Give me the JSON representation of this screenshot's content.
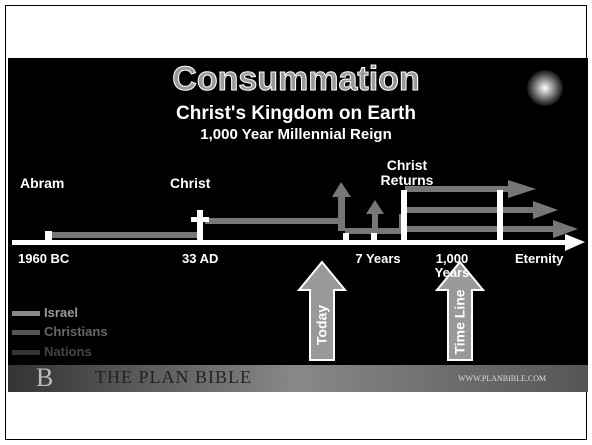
{
  "slide": {
    "title": "Consummation",
    "subtitle": "Christ's Kingdom on Earth",
    "subtitle2": "1,000 Year Millennial Reign",
    "labels_above": [
      "Abram",
      "Christ",
      "Christ Returns"
    ],
    "labels_below": [
      "1960 BC",
      "33 AD",
      "7 Years",
      "1,000 Years",
      "Eternity"
    ],
    "arrows": [
      "Today",
      "Time Line"
    ],
    "legend": [
      "Israel",
      "Christians",
      "Nations"
    ],
    "footer": {
      "brand": "THE PLAN BIBLE",
      "url": "WWW.PLANBIBLE.COM"
    }
  }
}
